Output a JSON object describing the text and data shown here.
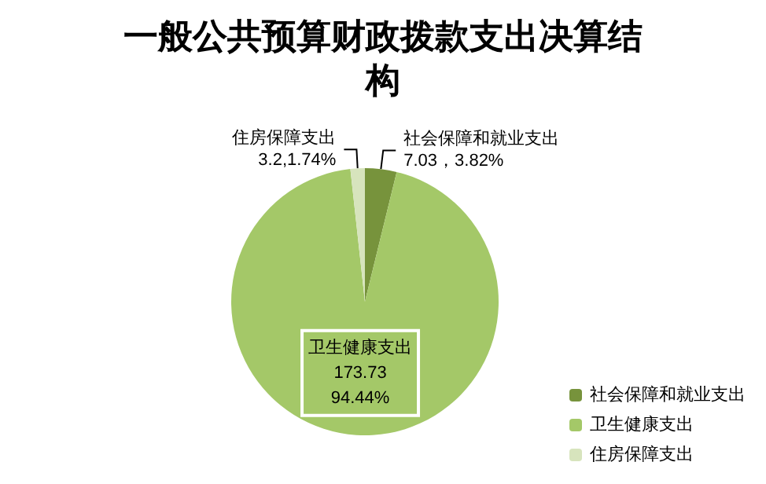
{
  "chart_data": {
    "type": "pie",
    "title": "一般公共预算财政拨款支出决算结构",
    "categories": [
      "社会保障和就业支出",
      "卫生健康支出",
      "住房保障支出"
    ],
    "values": [
      7.03,
      173.73,
      3.2
    ],
    "colors": [
      "#77933c",
      "#a4c868",
      "#d7e4bd"
    ],
    "value_labels": [
      "7.03，3.82%",
      "173.73\n94.44%",
      "3.2,1.74%"
    ],
    "legend": "bottom right"
  }
}
